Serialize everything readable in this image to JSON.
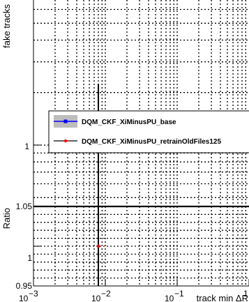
{
  "chart_data": [
    {
      "type": "scatter",
      "panel": "top",
      "ylabel": "fake tracks",
      "xscale": "log",
      "yscale": "log",
      "xlim": [
        0.001,
        1
      ],
      "y_tick_labels": [
        "1"
      ],
      "grid": true,
      "markers": {
        "x": 0.008
      },
      "legend": {
        "placement": "middle-right",
        "entries": [
          {
            "name": "DQM_CKF_XiMinusPU_base",
            "color": "#0000ff",
            "marker": "square"
          },
          {
            "name": "DQM_CKF_XiMinusPU_retrainOldFiles125",
            "color": "#ff0000",
            "marker": "circle"
          }
        ]
      }
    },
    {
      "type": "scatter",
      "panel": "ratio",
      "ylabel": "Ratio",
      "xlabel": "track min ΔR",
      "xscale": "log",
      "xlim": [
        0.001,
        1
      ],
      "ylim": [
        0.95,
        1.05
      ],
      "y_ticks": [
        0.95,
        1,
        1.05
      ],
      "y_tick_labels": [
        "0.95",
        "1",
        "1.05"
      ],
      "x_ticks": [
        0.001,
        0.01,
        0.1,
        1
      ],
      "x_tick_labels": [
        "10",
        "10",
        "10",
        "1"
      ],
      "x_tick_exponents": [
        "−3",
        "−2",
        "−1",
        ""
      ],
      "grid": true,
      "series": [
        {
          "name": "DQM_CKF_XiMinusPU_retrainOldFiles125",
          "x": [
            0.008
          ],
          "values": [
            1.0
          ],
          "color": "#ff0000"
        }
      ]
    }
  ]
}
